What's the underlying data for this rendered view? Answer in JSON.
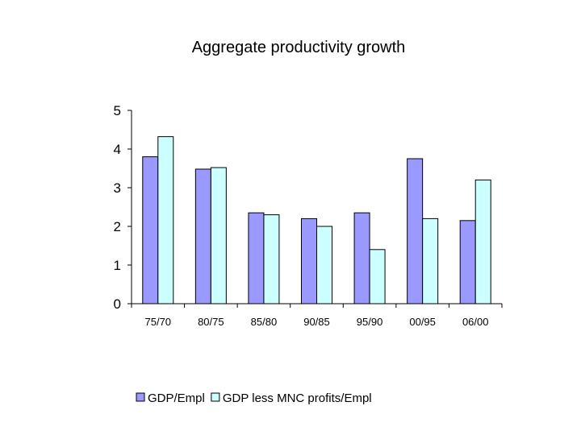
{
  "chart_data": {
    "type": "bar",
    "title": "Aggregate productivity growth",
    "xlabel": "",
    "ylabel": "",
    "categories": [
      "75/70",
      "80/75",
      "85/80",
      "90/85",
      "95/90",
      "00/95",
      "06/00"
    ],
    "ylim": [
      0,
      5
    ],
    "yticks": [
      "0",
      "1",
      "2",
      "3",
      "4",
      "5"
    ],
    "series": [
      {
        "name": "GDP/Empl",
        "color": "#9999ff",
        "values": [
          3.8,
          3.48,
          2.35,
          2.2,
          2.35,
          3.75,
          2.15
        ]
      },
      {
        "name": "GDP less MNC profits/Empl",
        "color": "#ccffff",
        "values": [
          4.32,
          3.52,
          2.3,
          2.0,
          1.4,
          2.2,
          3.2
        ]
      }
    ],
    "legend_position": "bottom"
  }
}
